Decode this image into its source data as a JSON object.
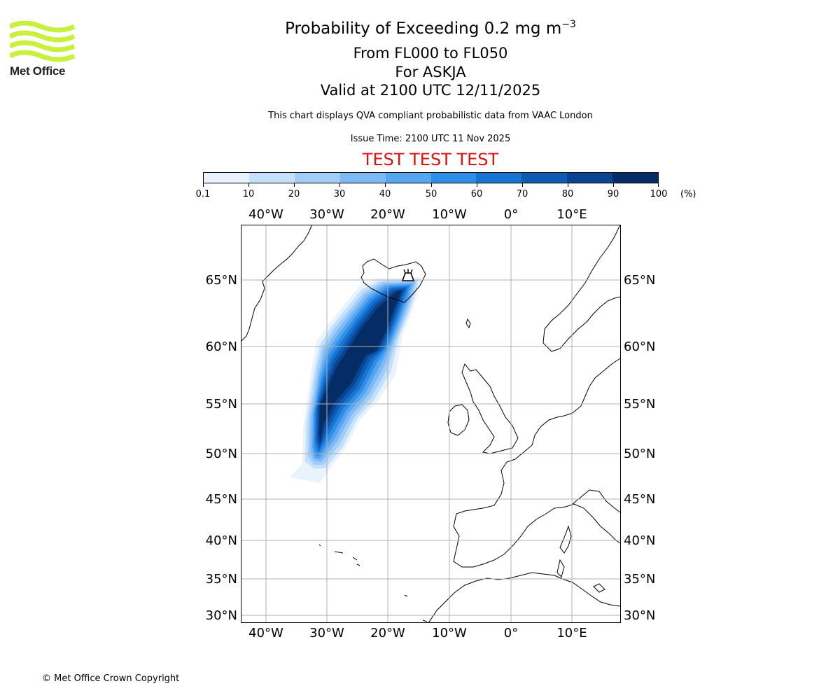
{
  "logo": {
    "text": "Met Office",
    "color": "#c8f03c"
  },
  "header": {
    "title_main": "Probability of Exceeding 0.2 mg m",
    "title_exponent": "−3",
    "subtitle_levels": "From FL000 to FL050",
    "subtitle_volcano": "For ASKJA",
    "subtitle_valid": "Valid at 2100 UTC 12/11/2025",
    "disclaimer": "This chart displays QVA compliant probabilistic data from VAAC London",
    "issue_time": "Issue Time: 2100 UTC 11 Nov 2025",
    "test_banner": "TEST TEST TEST",
    "test_banner_color": "#dd1111"
  },
  "colorbar": {
    "ticks": [
      "0.1",
      "10",
      "20",
      "30",
      "40",
      "50",
      "60",
      "70",
      "80",
      "90",
      "100"
    ],
    "unit": "(%)",
    "colors": [
      "#e8f3fe",
      "#c5e0fb",
      "#a2cdf8",
      "#7dbaf5",
      "#55a5f0",
      "#2e8ee8",
      "#1874d2",
      "#0e5bb4",
      "#094391",
      "#052c65"
    ]
  },
  "map": {
    "lon_labels": [
      "40°W",
      "30°W",
      "20°W",
      "10°W",
      "0°",
      "10°E"
    ],
    "lat_labels": [
      "65°N",
      "60°N",
      "55°N",
      "50°N",
      "45°N",
      "40°N",
      "35°N",
      "30°N"
    ],
    "volcano_marker": "volcano-icon",
    "grid": true
  },
  "footer": {
    "copyright": "© Met Office Crown Copyright"
  }
}
